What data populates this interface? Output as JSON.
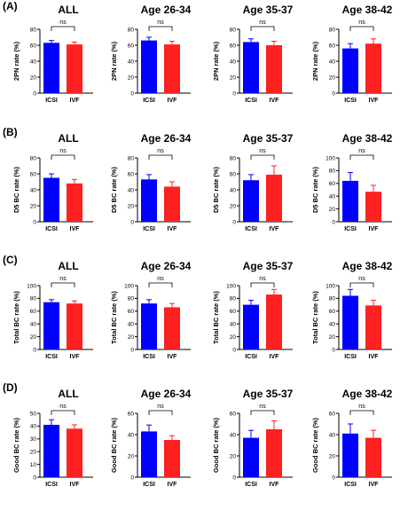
{
  "figure": {
    "panel_letters": [
      "(A)",
      "(B)",
      "(C)",
      "(D)"
    ]
  },
  "colors": {
    "ICSI": "#0000ff",
    "IVF": "#ff2020",
    "axis": "#000000"
  },
  "chart_data": [
    {
      "type": "bar",
      "row": 0,
      "col": 0,
      "title": "ALL",
      "ylabel": "2PN rate (%)",
      "categories": [
        "ICSI",
        "IVF"
      ],
      "values": [
        63,
        61
      ],
      "errors": [
        3,
        3
      ],
      "ylim": [
        0,
        80
      ],
      "yticks": [
        0,
        20,
        40,
        60,
        80
      ],
      "significance": "ns"
    },
    {
      "type": "bar",
      "row": 0,
      "col": 1,
      "title": "Age 26-34",
      "ylabel": "2PN rate (%)",
      "categories": [
        "ICSI",
        "IVF"
      ],
      "values": [
        66,
        61
      ],
      "errors": [
        4,
        4
      ],
      "ylim": [
        0,
        80
      ],
      "yticks": [
        0,
        20,
        40,
        60,
        80
      ],
      "significance": "ns"
    },
    {
      "type": "bar",
      "row": 0,
      "col": 2,
      "title": "Age 35-37",
      "ylabel": "2PN rate (%)",
      "categories": [
        "ICSI",
        "IVF"
      ],
      "values": [
        64,
        60
      ],
      "errors": [
        4,
        5
      ],
      "ylim": [
        0,
        80
      ],
      "yticks": [
        0,
        20,
        40,
        60,
        80
      ],
      "significance": "ns"
    },
    {
      "type": "bar",
      "row": 0,
      "col": 3,
      "title": "Age 38-42",
      "ylabel": "2PN rate (%)",
      "categories": [
        "ICSI",
        "IVF"
      ],
      "values": [
        56,
        62
      ],
      "errors": [
        6,
        6
      ],
      "ylim": [
        0,
        80
      ],
      "yticks": [
        0,
        20,
        40,
        60,
        80
      ],
      "significance": "ns"
    },
    {
      "type": "bar",
      "row": 1,
      "col": 0,
      "title": "ALL",
      "ylabel": "D5 BC rate (%)",
      "categories": [
        "ICSI",
        "IVF"
      ],
      "values": [
        55,
        48
      ],
      "errors": [
        5,
        5
      ],
      "ylim": [
        0,
        80
      ],
      "yticks": [
        0,
        20,
        40,
        60,
        80
      ],
      "significance": "ns"
    },
    {
      "type": "bar",
      "row": 1,
      "col": 1,
      "title": "Age 26-34",
      "ylabel": "D5 BC rate (%)",
      "categories": [
        "ICSI",
        "IVF"
      ],
      "values": [
        53,
        44
      ],
      "errors": [
        6,
        6
      ],
      "ylim": [
        0,
        80
      ],
      "yticks": [
        0,
        20,
        40,
        60,
        80
      ],
      "significance": "ns"
    },
    {
      "type": "bar",
      "row": 1,
      "col": 2,
      "title": "Age 35-37",
      "ylabel": "D5 BC rate (%)",
      "categories": [
        "ICSI",
        "IVF"
      ],
      "values": [
        52,
        59
      ],
      "errors": [
        7,
        11
      ],
      "ylim": [
        0,
        80
      ],
      "yticks": [
        0,
        20,
        40,
        60,
        80
      ],
      "significance": "ns"
    },
    {
      "type": "bar",
      "row": 1,
      "col": 3,
      "title": "Age 38-42",
      "ylabel": "D5 BC rate (%)",
      "categories": [
        "ICSI",
        "IVF"
      ],
      "values": [
        64,
        47
      ],
      "errors": [
        13,
        10
      ],
      "ylim": [
        0,
        100
      ],
      "yticks": [
        0,
        20,
        40,
        60,
        80,
        100
      ],
      "significance": "ns"
    },
    {
      "type": "bar",
      "row": 2,
      "col": 0,
      "title": "ALL",
      "ylabel": "Total BC rate (%)",
      "categories": [
        "ICSI",
        "IVF"
      ],
      "values": [
        74,
        72
      ],
      "errors": [
        4,
        4
      ],
      "ylim": [
        0,
        100
      ],
      "yticks": [
        0,
        20,
        40,
        60,
        80,
        100
      ],
      "significance": "ns"
    },
    {
      "type": "bar",
      "row": 2,
      "col": 1,
      "title": "Age 26-34",
      "ylabel": "Total BC rate (%)",
      "categories": [
        "ICSI",
        "IVF"
      ],
      "values": [
        72,
        66
      ],
      "errors": [
        6,
        6
      ],
      "ylim": [
        0,
        100
      ],
      "yticks": [
        0,
        20,
        40,
        60,
        80,
        100
      ],
      "significance": "ns"
    },
    {
      "type": "bar",
      "row": 2,
      "col": 2,
      "title": "Age 35-37",
      "ylabel": "Total BC rate (%)",
      "categories": [
        "ICSI",
        "IVF"
      ],
      "values": [
        70,
        86
      ],
      "errors": [
        7,
        8
      ],
      "ylim": [
        0,
        100
      ],
      "yticks": [
        0,
        20,
        40,
        60,
        80,
        100
      ],
      "significance": "ns"
    },
    {
      "type": "bar",
      "row": 2,
      "col": 3,
      "title": "Age 38-42",
      "ylabel": "Total BC rate (%)",
      "categories": [
        "ICSI",
        "IVF"
      ],
      "values": [
        84,
        69
      ],
      "errors": [
        10,
        8
      ],
      "ylim": [
        0,
        100
      ],
      "yticks": [
        0,
        20,
        40,
        60,
        80,
        100
      ],
      "significance": "ns"
    },
    {
      "type": "bar",
      "row": 3,
      "col": 0,
      "title": "ALL",
      "ylabel": "Good BC rate (%)",
      "categories": [
        "ICSI",
        "IVF"
      ],
      "values": [
        41,
        38
      ],
      "errors": [
        4,
        3
      ],
      "ylim": [
        0,
        50
      ],
      "yticks": [
        0,
        10,
        20,
        30,
        40,
        50
      ],
      "significance": "ns"
    },
    {
      "type": "bar",
      "row": 3,
      "col": 1,
      "title": "Age 26-34",
      "ylabel": "Good BC rate (%)",
      "categories": [
        "ICSI",
        "IVF"
      ],
      "values": [
        43,
        35
      ],
      "errors": [
        6,
        4
      ],
      "ylim": [
        0,
        60
      ],
      "yticks": [
        0,
        20,
        40,
        60
      ],
      "significance": "ns"
    },
    {
      "type": "bar",
      "row": 3,
      "col": 2,
      "title": "Age 35-37",
      "ylabel": "Good BC rate (%)",
      "categories": [
        "ICSI",
        "IVF"
      ],
      "values": [
        37,
        45
      ],
      "errors": [
        7,
        8
      ],
      "ylim": [
        0,
        60
      ],
      "yticks": [
        0,
        20,
        40,
        60
      ],
      "significance": "ns"
    },
    {
      "type": "bar",
      "row": 3,
      "col": 3,
      "title": "Age 38-42",
      "ylabel": "Good BC rate (%)",
      "categories": [
        "ICSI",
        "IVF"
      ],
      "values": [
        41,
        37
      ],
      "errors": [
        9,
        7
      ],
      "ylim": [
        0,
        60
      ],
      "yticks": [
        0,
        20,
        40,
        60
      ],
      "significance": "ns"
    }
  ]
}
